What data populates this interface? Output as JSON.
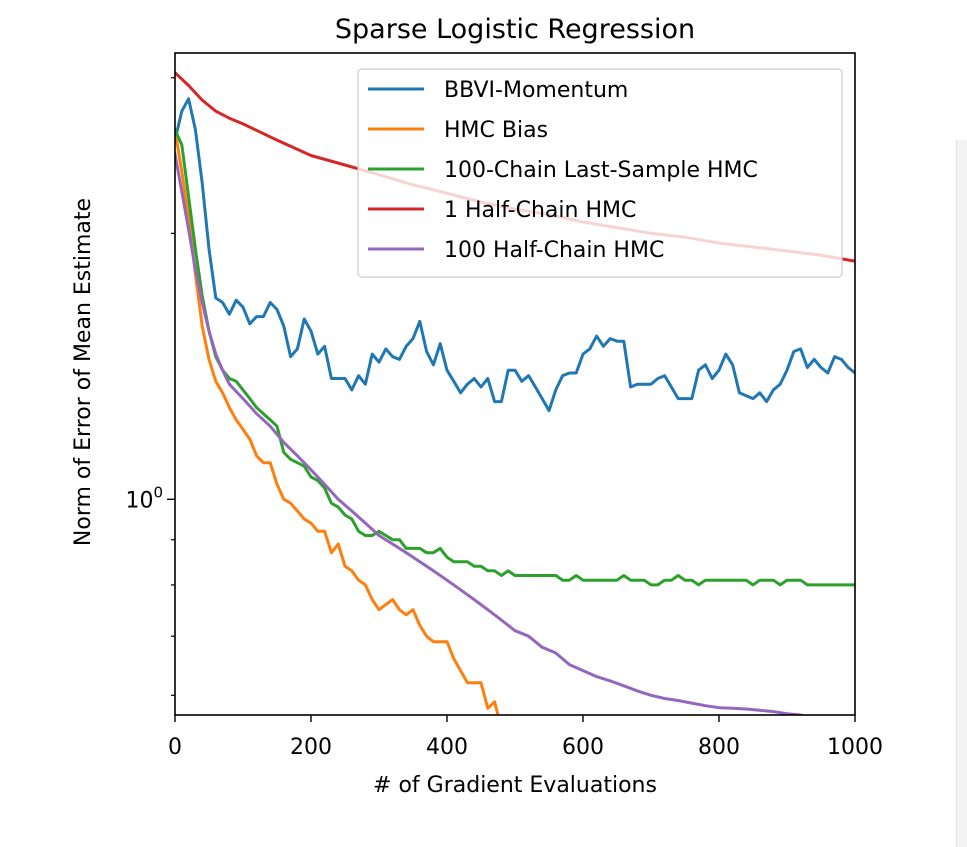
{
  "chart_data": {
    "type": "line",
    "title": "Sparse Logistic Regression",
    "xlabel": "# of Gradient Evaluations",
    "ylabel": "Norm of Error of Mean Estimate",
    "x_ticks": [
      "0",
      "200",
      "400",
      "600",
      "800",
      "1000"
    ],
    "y_tick_label": {
      "base": "10",
      "exp": "0"
    },
    "xlim": [
      0,
      1000
    ],
    "ylim": [
      0.57,
      3.2
    ],
    "yscale": "log",
    "grid": false,
    "legend_position": "top-right",
    "series": [
      {
        "name": "BBVI-Momentum",
        "color": "#1f77b4",
        "x": [
          0,
          10,
          20,
          30,
          40,
          50,
          60,
          70,
          80,
          90,
          100,
          110,
          120,
          130,
          140,
          150,
          160,
          170,
          180,
          190,
          200,
          210,
          220,
          230,
          240,
          250,
          260,
          270,
          280,
          290,
          300,
          310,
          320,
          330,
          340,
          350,
          360,
          370,
          380,
          390,
          400,
          410,
          420,
          430,
          440,
          450,
          460,
          470,
          480,
          490,
          500,
          510,
          520,
          530,
          540,
          550,
          560,
          570,
          580,
          590,
          600,
          610,
          620,
          630,
          640,
          650,
          660,
          670,
          680,
          690,
          700,
          710,
          720,
          730,
          740,
          750,
          760,
          770,
          780,
          790,
          800,
          810,
          820,
          830,
          840,
          850,
          860,
          870,
          880,
          890,
          900,
          910,
          920,
          930,
          940,
          950,
          960,
          970,
          980,
          990,
          1000
        ],
        "y": [
          2.55,
          2.75,
          2.84,
          2.62,
          2.28,
          1.92,
          1.69,
          1.67,
          1.62,
          1.68,
          1.65,
          1.58,
          1.61,
          1.61,
          1.67,
          1.64,
          1.57,
          1.45,
          1.48,
          1.6,
          1.55,
          1.46,
          1.49,
          1.37,
          1.37,
          1.37,
          1.33,
          1.38,
          1.35,
          1.46,
          1.43,
          1.48,
          1.45,
          1.44,
          1.49,
          1.52,
          1.59,
          1.47,
          1.42,
          1.5,
          1.4,
          1.36,
          1.32,
          1.35,
          1.37,
          1.34,
          1.37,
          1.29,
          1.29,
          1.4,
          1.4,
          1.36,
          1.38,
          1.34,
          1.3,
          1.26,
          1.33,
          1.38,
          1.39,
          1.39,
          1.46,
          1.48,
          1.53,
          1.49,
          1.52,
          1.51,
          1.51,
          1.34,
          1.35,
          1.35,
          1.35,
          1.37,
          1.38,
          1.34,
          1.3,
          1.3,
          1.3,
          1.4,
          1.42,
          1.37,
          1.4,
          1.46,
          1.42,
          1.32,
          1.31,
          1.3,
          1.32,
          1.29,
          1.33,
          1.35,
          1.4,
          1.47,
          1.48,
          1.41,
          1.44,
          1.41,
          1.39,
          1.45,
          1.44,
          1.41,
          1.39
        ]
      },
      {
        "name": "HMC Bias",
        "color": "#ff7f0e",
        "x": [
          0,
          10,
          20,
          30,
          40,
          50,
          60,
          70,
          80,
          90,
          100,
          110,
          120,
          130,
          140,
          150,
          160,
          170,
          180,
          190,
          200,
          210,
          220,
          230,
          240,
          250,
          260,
          270,
          280,
          290,
          300,
          310,
          320,
          330,
          340,
          350,
          360,
          370,
          380,
          390,
          400,
          410,
          420,
          430,
          440,
          450,
          460,
          470,
          475
        ],
        "y": [
          2.62,
          2.35,
          2.08,
          1.8,
          1.57,
          1.44,
          1.36,
          1.32,
          1.27,
          1.23,
          1.2,
          1.17,
          1.12,
          1.1,
          1.1,
          1.04,
          1.0,
          0.99,
          0.97,
          0.95,
          0.94,
          0.92,
          0.92,
          0.87,
          0.89,
          0.84,
          0.83,
          0.81,
          0.8,
          0.77,
          0.75,
          0.76,
          0.77,
          0.75,
          0.74,
          0.75,
          0.72,
          0.7,
          0.69,
          0.69,
          0.69,
          0.66,
          0.64,
          0.62,
          0.62,
          0.62,
          0.58,
          0.59,
          0.57
        ]
      },
      {
        "name": "100-Chain Last-Sample HMC",
        "color": "#2ca02c",
        "x": [
          0,
          10,
          20,
          30,
          40,
          50,
          60,
          70,
          80,
          90,
          100,
          110,
          120,
          130,
          140,
          150,
          160,
          170,
          180,
          190,
          200,
          210,
          220,
          230,
          240,
          250,
          260,
          270,
          280,
          290,
          300,
          310,
          320,
          330,
          340,
          350,
          360,
          370,
          380,
          390,
          400,
          410,
          420,
          430,
          440,
          450,
          460,
          470,
          480,
          490,
          500,
          510,
          520,
          530,
          540,
          550,
          560,
          570,
          580,
          590,
          600,
          610,
          620,
          630,
          640,
          650,
          660,
          670,
          680,
          690,
          700,
          710,
          720,
          730,
          740,
          750,
          760,
          770,
          780,
          790,
          800,
          810,
          820,
          830,
          840,
          850,
          860,
          870,
          880,
          890,
          900,
          910,
          920,
          930,
          940,
          950,
          960,
          970,
          980,
          990,
          1000
        ],
        "y": [
          2.62,
          2.52,
          2.2,
          1.92,
          1.7,
          1.55,
          1.45,
          1.4,
          1.37,
          1.36,
          1.33,
          1.3,
          1.27,
          1.25,
          1.23,
          1.21,
          1.13,
          1.11,
          1.1,
          1.09,
          1.06,
          1.05,
          1.03,
          0.99,
          0.98,
          0.96,
          0.95,
          0.92,
          0.91,
          0.91,
          0.92,
          0.91,
          0.9,
          0.9,
          0.88,
          0.88,
          0.88,
          0.87,
          0.87,
          0.88,
          0.86,
          0.85,
          0.85,
          0.85,
          0.84,
          0.84,
          0.83,
          0.83,
          0.82,
          0.83,
          0.82,
          0.82,
          0.82,
          0.82,
          0.82,
          0.82,
          0.82,
          0.81,
          0.81,
          0.82,
          0.81,
          0.81,
          0.81,
          0.81,
          0.81,
          0.81,
          0.82,
          0.81,
          0.81,
          0.81,
          0.8,
          0.8,
          0.81,
          0.81,
          0.82,
          0.81,
          0.81,
          0.8,
          0.81,
          0.81,
          0.81,
          0.81,
          0.81,
          0.81,
          0.81,
          0.8,
          0.81,
          0.81,
          0.81,
          0.8,
          0.81,
          0.81,
          0.81,
          0.8,
          0.8,
          0.8,
          0.8,
          0.8,
          0.8,
          0.8,
          0.8
        ]
      },
      {
        "name": "1 Half-Chain HMC",
        "color": "#d62728",
        "x": [
          0,
          20,
          40,
          60,
          80,
          100,
          150,
          200,
          250,
          300,
          350,
          400,
          450,
          500,
          550,
          600,
          650,
          700,
          750,
          800,
          850,
          900,
          950,
          1000
        ],
        "y": [
          3.04,
          2.94,
          2.83,
          2.75,
          2.7,
          2.66,
          2.55,
          2.45,
          2.39,
          2.33,
          2.27,
          2.22,
          2.17,
          2.13,
          2.1,
          2.06,
          2.03,
          2.0,
          1.98,
          1.95,
          1.93,
          1.91,
          1.89,
          1.86
        ]
      },
      {
        "name": "100 Half-Chain HMC",
        "color": "#9467bd",
        "x": [
          0,
          10,
          20,
          30,
          40,
          50,
          60,
          70,
          80,
          100,
          120,
          140,
          160,
          180,
          200,
          220,
          240,
          260,
          280,
          300,
          320,
          340,
          360,
          380,
          400,
          420,
          440,
          460,
          480,
          500,
          520,
          540,
          560,
          580,
          600,
          620,
          640,
          660,
          680,
          700,
          720,
          740,
          760,
          780,
          800,
          820,
          840,
          860,
          880,
          900,
          920
        ],
        "y": [
          2.46,
          2.23,
          2.02,
          1.82,
          1.67,
          1.55,
          1.46,
          1.4,
          1.35,
          1.3,
          1.25,
          1.21,
          1.16,
          1.12,
          1.08,
          1.04,
          1.0,
          0.97,
          0.94,
          0.91,
          0.89,
          0.87,
          0.85,
          0.83,
          0.81,
          0.79,
          0.77,
          0.75,
          0.73,
          0.71,
          0.7,
          0.68,
          0.67,
          0.65,
          0.64,
          0.63,
          0.623,
          0.615,
          0.607,
          0.6,
          0.595,
          0.592,
          0.588,
          0.584,
          0.581,
          0.58,
          0.579,
          0.577,
          0.575,
          0.572,
          0.57
        ]
      }
    ]
  }
}
